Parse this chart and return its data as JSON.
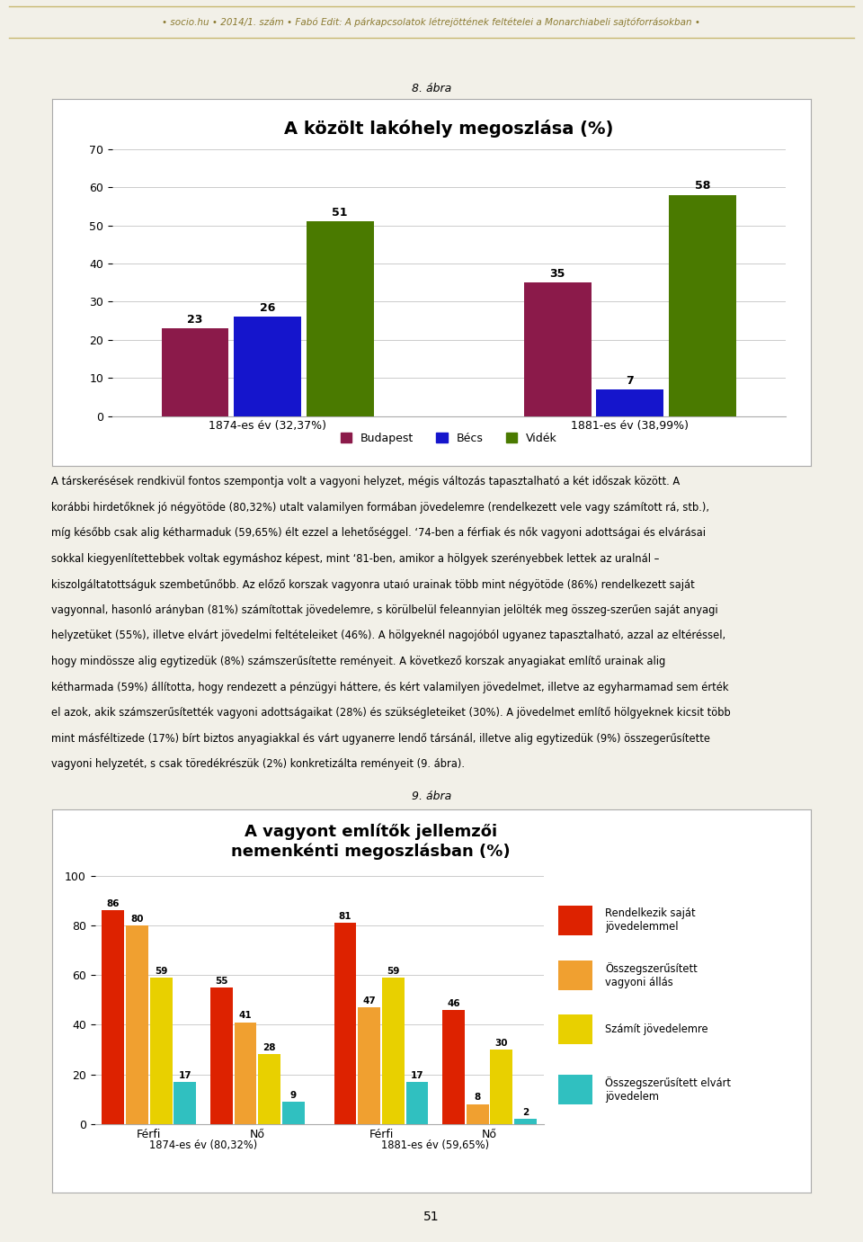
{
  "page_header": "• socio.hu • 2014/1. szám • Fabó Edit: A párkapcsolatok létrejöttének feltételei a Monarchiabeli sajtóforrásokban •",
  "chart1": {
    "fig_label": "8. ábra",
    "title": "A közölt lakóhely megoszlása (%)",
    "groups": [
      "1874-es év (32,37%)",
      "1881-es év (38,99%)"
    ],
    "series": [
      "Budapest",
      "Bécs",
      "Vidék"
    ],
    "values": [
      [
        23,
        26,
        51
      ],
      [
        35,
        7,
        58
      ]
    ],
    "colors": [
      "#8B1A4A",
      "#1515CC",
      "#4A7A00"
    ],
    "ylim": [
      0,
      70
    ],
    "yticks": [
      0,
      10,
      20,
      30,
      40,
      50,
      60,
      70
    ]
  },
  "body_text": [
    "A társkerésések rendkivül fontos szempontja volt a vagyoni helyzet, mégis változás tapasztalható a két időszak között. A",
    "korábbi hirdetőknek jó négyötöde (80,32%) utalt valamilyen formában jövedelemre (rendelkezett vele vagy számított rá, stb.),",
    "míg később csak alig kétharmaduk (59,65%) élt ezzel a lehetőséggel. ‘74-ben a férfiak és nők vagyoni adottságai és elvárásai",
    "sokkal kiegyenlítettebbek voltak egymáshoz képest, mint ‘81-ben, amikor a hölgyek szerényebbek lettek az uralnál –",
    "kiszolgáltatottságuk szembetűnőbb. Az előző korszak vagyonra utaıó urainak több mint négyötöde (86%) rendelkezett saját",
    "vagyonnal, hasonló arányban (81%) számítottak jövedelemre, s körülbelül feleannyian jelölték meg összeg­szerűen saját anyagi",
    "helyzetüket (55%), illetve elvárt jövedelmi feltételeiket (46%). A hölgyeknél nagojóból ugyanez tapasztalható, azzal az eltéréssel,",
    "hogy mindössze alig egytizedük (8%) számszerűsítette reményeit. A következő korszak anyagiakat említő urainak alig",
    "kétharmada (59%) állította, hogy rendezett a pénzügyi háttere, és kért valamilyen jövedelmet, illetve az egyharmamad sem érték",
    "el azok, akik számszerűsítették vagyoni adottságaikat (28%) és szükségleteiket (30%). A jövedelmet említő hölgyeknek kicsit több",
    "mint másféltizede (17%) bírt biztos anyagiakkal és várt ugyanerre lendő társánál, illetve alig egytizedük (9%) összegerűsítette",
    "vagyoni helyzetét, s csak töredékrészük (2%) konkretizálta reményeit (9. ábra)."
  ],
  "chart2": {
    "fig_label": "9. ábra",
    "title": "A vagyont említők jellemzői\nnemnenkénti megoszlásban (%)",
    "group_labels": [
      "Férfi",
      "Nő",
      "Férfi",
      "Nő"
    ],
    "period_labels": [
      "1874-es év (80,32%)",
      "1881-es év (59,65%)"
    ],
    "series": [
      "Rendelkezik saját jövedelemmel",
      "Összegszerűsített vagyoni állás",
      "Számít jövedelemre",
      "Összegszerűsített elvárt jövedelem"
    ],
    "values": [
      [
        86,
        55,
        81,
        46
      ],
      [
        80,
        41,
        47,
        8
      ],
      [
        59,
        28,
        59,
        30
      ],
      [
        17,
        9,
        17,
        2
      ]
    ],
    "colors": [
      "#DD2200",
      "#F0A030",
      "#E8D000",
      "#30C0C0"
    ],
    "ylim": [
      0,
      100
    ],
    "yticks": [
      0,
      20,
      40,
      60,
      80,
      100
    ]
  },
  "footer_text": "51",
  "bg_color": "#F2F0E8",
  "chart_bg": "#FFFFFF",
  "text_color": "#000000",
  "header_color": "#8B7A30",
  "header_line_color": "#C8B870"
}
